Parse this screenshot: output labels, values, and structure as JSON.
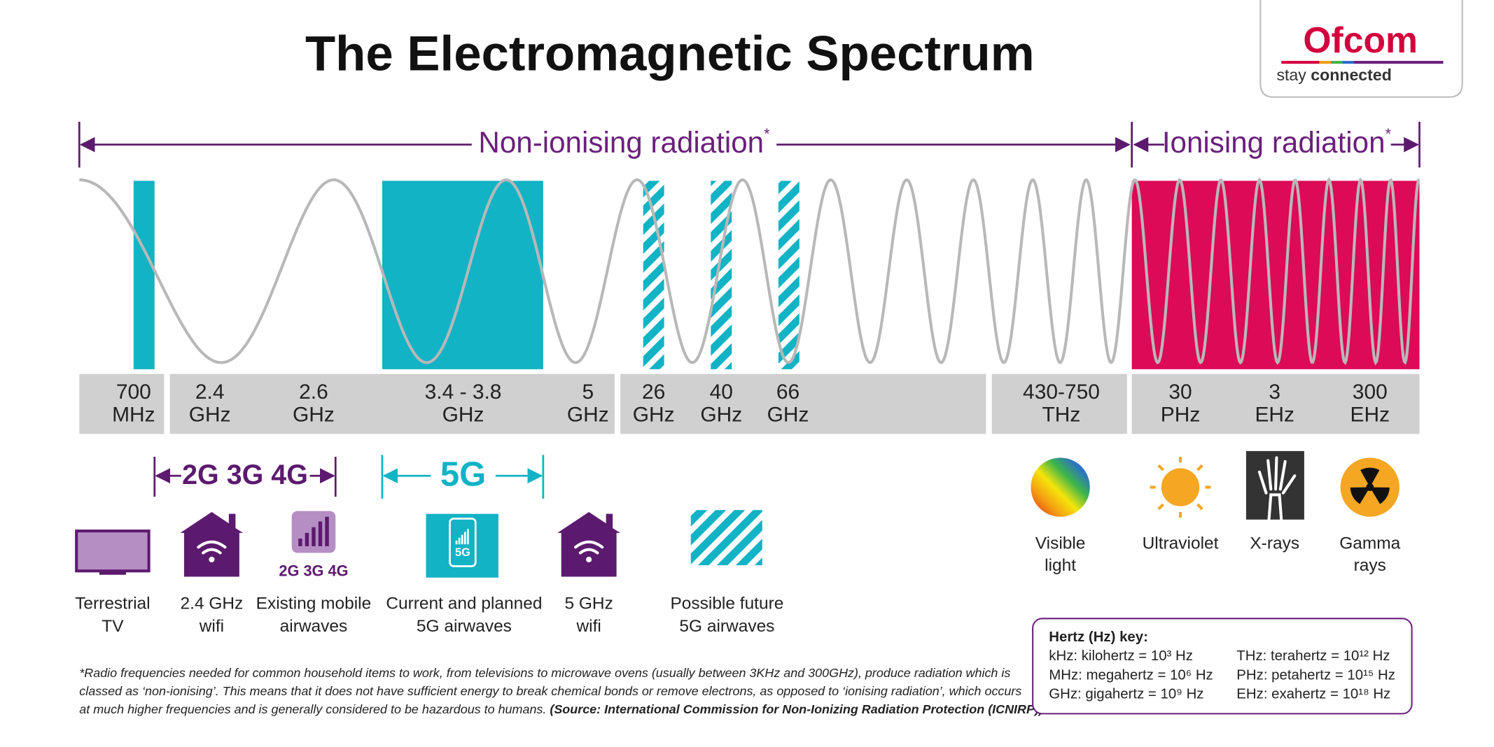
{
  "header": {
    "title": "The Electromagnetic Spectrum"
  },
  "logo": {
    "name": "Ofcom",
    "tagline": [
      "stay",
      "connected"
    ]
  },
  "regions": [
    {
      "label": "Non-ionising radiation",
      "mark": "*"
    },
    {
      "label": "Ionising radiation",
      "mark": "*"
    }
  ],
  "frequencies": [
    [
      "700",
      "MHz"
    ],
    [
      "2.4",
      "GHz"
    ],
    [
      "2.6",
      "GHz"
    ],
    [
      "3.4 - 3.8",
      "GHz"
    ],
    [
      "5",
      "GHz"
    ],
    [
      "26",
      "GHz"
    ],
    [
      "40",
      "GHz"
    ],
    [
      "66",
      "GHz"
    ],
    [
      "430-750",
      "THz"
    ],
    [
      "30",
      "PHz"
    ],
    [
      "3",
      "EHz"
    ],
    [
      "300",
      "EHz"
    ]
  ],
  "bands": [
    "2G 3G 4G",
    "5G"
  ],
  "uses": [
    {
      "label": [
        "Terrestrial",
        "TV"
      ]
    },
    {
      "label": [
        "2.4 GHz",
        "wifi"
      ]
    },
    {
      "label": [
        "Existing mobile",
        "airwaves"
      ],
      "icon_text": "2G 3G 4G"
    },
    {
      "label": [
        "Current and planned",
        "5G airwaves"
      ],
      "icon_text": "5G"
    },
    {
      "label": [
        "5 GHz",
        "wifi"
      ]
    },
    {
      "label": [
        "Possible future",
        "5G airwaves"
      ]
    }
  ],
  "radiation_types": [
    [
      "Visible",
      "light"
    ],
    [
      "Ultraviolet"
    ],
    [
      "X-rays"
    ],
    [
      "Gamma",
      "rays"
    ]
  ],
  "footnote": {
    "lines": [
      "*Radio frequencies needed for common household items to work, from televisions to microwave ovens (usually between 3KHz and 300GHz), produce radiation which is",
      "classed as ‘non-ionising’. This means that it does not have sufficient energy to break chemical bonds or remove electrons, as opposed to ‘ionising radiation’, which occurs",
      "at much higher frequencies and is generally considered to be hazardous to humans. "
    ],
    "source": "(Source: International Commission for Non-Ionizing Radiation Protection (ICNIRP))"
  },
  "key": {
    "title": "Hertz (Hz) key:",
    "entries": [
      "kHz: kilohertz = 10³ Hz",
      "THz: terahertz = 10¹² Hz",
      "MHz: megahertz = 10⁶ Hz",
      "PHz: petahertz = 10¹⁵ Hz",
      "GHz: gigahertz = 10⁹ Hz",
      "EHz: exahertz = 10¹⁸ Hz"
    ]
  }
}
